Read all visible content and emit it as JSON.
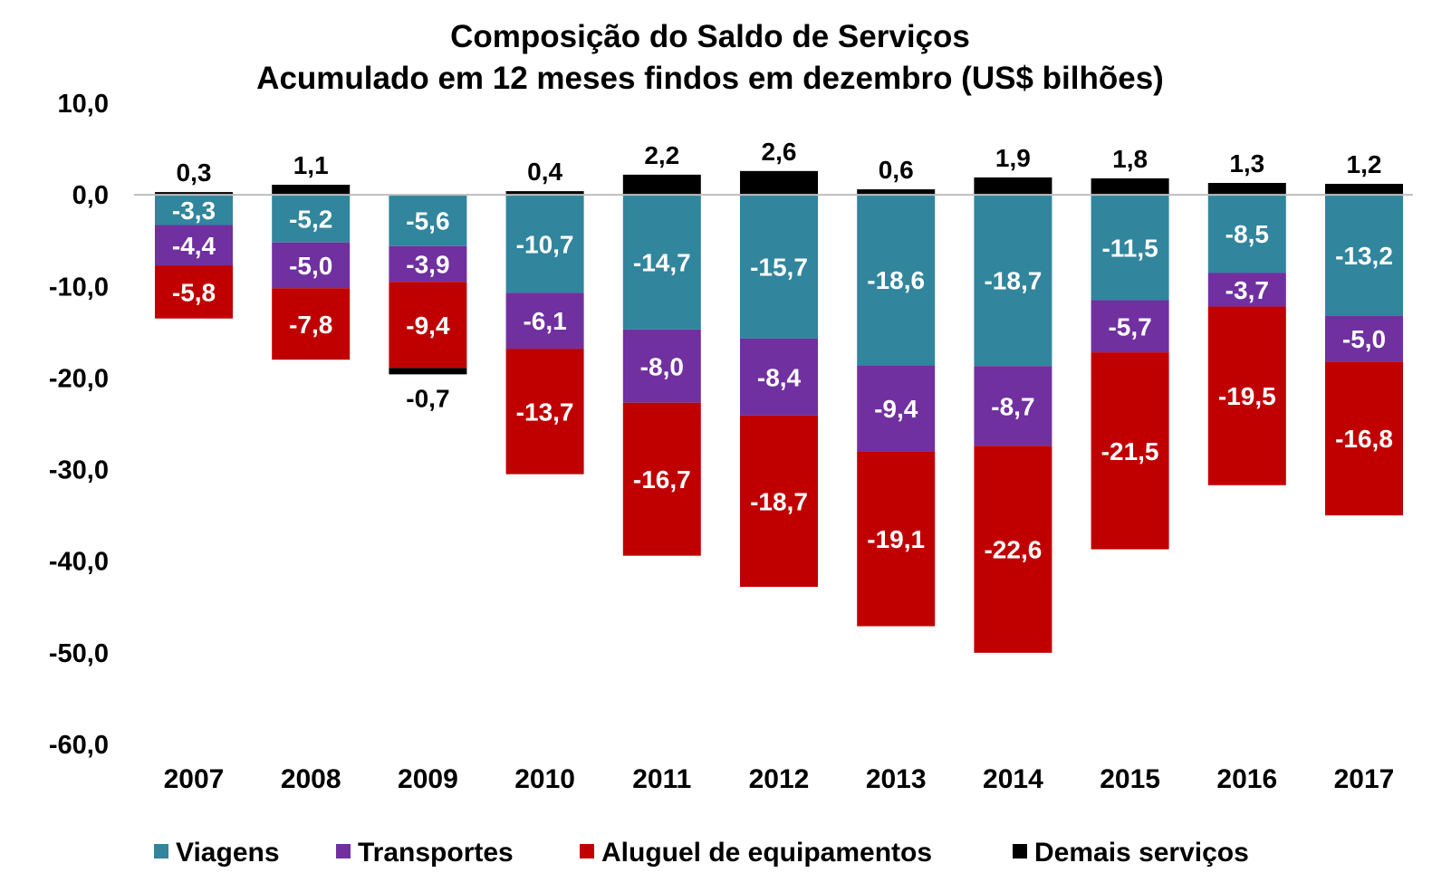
{
  "chart_data": {
    "type": "bar",
    "stacked": true,
    "title": "Composição do Saldo de Serviços",
    "subtitle": "Acumulado em 12 meses findos em dezembro (US$ bilhões)",
    "categories": [
      "2007",
      "2008",
      "2009",
      "2010",
      "2011",
      "2012",
      "2013",
      "2014",
      "2015",
      "2016",
      "2017"
    ],
    "ylim": [
      -60,
      10
    ],
    "y_ticks": [
      10,
      0,
      -10,
      -20,
      -30,
      -40,
      -50,
      -60
    ],
    "y_tick_labels": [
      "10,0",
      "0,0",
      "-10,0",
      "-20,0",
      "-30,0",
      "-40,0",
      "-50,0",
      "-60,0"
    ],
    "grid": false,
    "legend_position": "bottom",
    "series": [
      {
        "name": "Viagens",
        "color": "#31859C",
        "label_color": "#ffffff",
        "values": [
          -3.3,
          -5.2,
          -5.6,
          -10.7,
          -14.7,
          -15.7,
          -18.6,
          -18.7,
          -11.5,
          -8.5,
          -13.2
        ],
        "labels": [
          "-3,3",
          "-5,2",
          "-5,6",
          "-10,7",
          "-14,7",
          "-15,7",
          "-18,6",
          "-18,7",
          "-11,5",
          "-8,5",
          "-13,2"
        ]
      },
      {
        "name": "Transportes",
        "color": "#7030A0",
        "label_color": "#ffffff",
        "values": [
          -4.4,
          -5.0,
          -3.9,
          -6.1,
          -8.0,
          -8.4,
          -9.4,
          -8.7,
          -5.7,
          -3.7,
          -5.0
        ],
        "labels": [
          "-4,4",
          "-5,0",
          "-3,9",
          "-6,1",
          "-8,0",
          "-8,4",
          "-9,4",
          "-8,7",
          "-5,7",
          "-3,7",
          "-5,0"
        ]
      },
      {
        "name": "Aluguel de equipamentos",
        "color": "#C00000",
        "label_color": "#ffffff",
        "values": [
          -5.8,
          -7.8,
          -9.4,
          -13.7,
          -16.7,
          -18.7,
          -19.1,
          -22.6,
          -21.5,
          -19.5,
          -16.8
        ],
        "labels": [
          "-5,8",
          "-7,8",
          "-9,4",
          "-13,7",
          "-16,7",
          "-18,7",
          "-19,1",
          "-22,6",
          "-21,5",
          "-19,5",
          "-16,8"
        ]
      },
      {
        "name": "Demais serviços",
        "color": "#000000",
        "label_color": "#000000",
        "values": [
          0.3,
          1.1,
          -0.7,
          0.4,
          2.2,
          2.6,
          0.6,
          1.9,
          1.8,
          1.3,
          1.2
        ],
        "labels": [
          "0,3",
          "1,1",
          "-0,7",
          "0,4",
          "2,2",
          "2,6",
          "0,6",
          "1,9",
          "1,8",
          "1,3",
          "1,2"
        ]
      }
    ]
  }
}
